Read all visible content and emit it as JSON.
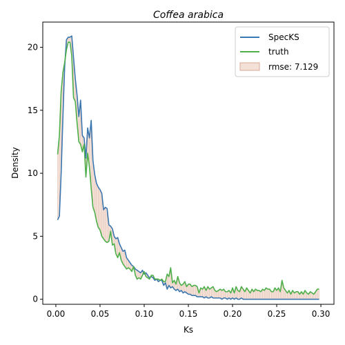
{
  "chart_data": {
    "type": "line",
    "title": "Coffea arabica",
    "xlabel": "Ks",
    "ylabel": "Density",
    "xlim": [
      -0.0148,
      0.3148
    ],
    "ylim": [
      -0.4,
      22.0
    ],
    "xticks": [
      0.0,
      0.05,
      0.1,
      0.15,
      0.2,
      0.25,
      0.3
    ],
    "xtick_labels": [
      "0.00",
      "0.05",
      "0.10",
      "0.15",
      "0.20",
      "0.25",
      "0.30"
    ],
    "yticks": [
      0,
      5,
      10,
      15,
      20
    ],
    "ytick_labels": [
      "0",
      "5",
      "10",
      "15",
      "20"
    ],
    "grid": false,
    "legend_position": "upper right",
    "x": [
      0.002,
      0.004,
      0.006,
      0.008,
      0.01,
      0.012,
      0.014,
      0.016,
      0.018,
      0.02,
      0.022,
      0.024,
      0.026,
      0.028,
      0.03,
      0.032,
      0.034,
      0.036,
      0.038,
      0.04,
      0.042,
      0.044,
      0.046,
      0.048,
      0.05,
      0.052,
      0.054,
      0.056,
      0.058,
      0.06,
      0.062,
      0.064,
      0.066,
      0.068,
      0.07,
      0.072,
      0.074,
      0.076,
      0.078,
      0.08,
      0.082,
      0.084,
      0.086,
      0.088,
      0.09,
      0.092,
      0.094,
      0.096,
      0.098,
      0.1,
      0.102,
      0.104,
      0.106,
      0.108,
      0.11,
      0.112,
      0.114,
      0.116,
      0.118,
      0.12,
      0.122,
      0.124,
      0.126,
      0.128,
      0.13,
      0.132,
      0.134,
      0.136,
      0.138,
      0.14,
      0.142,
      0.144,
      0.146,
      0.148,
      0.15,
      0.152,
      0.154,
      0.156,
      0.158,
      0.16,
      0.162,
      0.164,
      0.166,
      0.168,
      0.17,
      0.172,
      0.174,
      0.176,
      0.178,
      0.18,
      0.182,
      0.184,
      0.186,
      0.188,
      0.19,
      0.192,
      0.194,
      0.196,
      0.198,
      0.2,
      0.202,
      0.204,
      0.206,
      0.208,
      0.21,
      0.212,
      0.214,
      0.216,
      0.218,
      0.22,
      0.222,
      0.224,
      0.226,
      0.228,
      0.23,
      0.232,
      0.234,
      0.236,
      0.238,
      0.24,
      0.242,
      0.244,
      0.246,
      0.248,
      0.25,
      0.252,
      0.254,
      0.256,
      0.258,
      0.26,
      0.262,
      0.264,
      0.266,
      0.268,
      0.27,
      0.272,
      0.274,
      0.276,
      0.278,
      0.28,
      0.282,
      0.284,
      0.286,
      0.288,
      0.29,
      0.292,
      0.294,
      0.296,
      0.298
    ],
    "series": [
      {
        "name": "SpecKS",
        "color": "#3a76af",
        "values": [
          6.3,
          6.6,
          10.0,
          14.5,
          18.5,
          20.6,
          20.8,
          20.8,
          20.9,
          19.2,
          17.5,
          16.2,
          14.5,
          15.8,
          13.0,
          12.8,
          11.2,
          13.6,
          12.8,
          14.2,
          11.0,
          9.9,
          9.2,
          8.9,
          8.7,
          8.4,
          7.1,
          7.3,
          7.2,
          5.9,
          5.8,
          5.6,
          5.0,
          4.8,
          4.9,
          4.4,
          4.1,
          3.8,
          3.9,
          3.3,
          3.1,
          2.9,
          2.7,
          2.6,
          2.4,
          2.3,
          2.2,
          2.1,
          2.3,
          2.0,
          2.1,
          1.9,
          1.7,
          1.8,
          1.7,
          1.5,
          1.6,
          1.4,
          1.5,
          1.5,
          1.1,
          1.3,
          0.8,
          1.1,
          0.9,
          1.0,
          0.8,
          0.7,
          0.8,
          0.6,
          0.7,
          0.5,
          0.6,
          0.5,
          0.4,
          0.4,
          0.3,
          0.3,
          0.3,
          0.2,
          0.2,
          0.2,
          0.2,
          0.1,
          0.2,
          0.1,
          0.1,
          0.2,
          0.1,
          0.1,
          0.1,
          0.1,
          0.1,
          0.0,
          0.1,
          0.1,
          0.0,
          0.1,
          0.0,
          0.1,
          0.0,
          0.1,
          0.0,
          0.0,
          0.1,
          0.0,
          0.0,
          0.0,
          0.0,
          0.0,
          0.0,
          0.0,
          0.0,
          0.0,
          0.0,
          0.0,
          0.0,
          0.0,
          0.0,
          0.0,
          0.0,
          0.0,
          0.0,
          0.0,
          0.0,
          0.0,
          0.0,
          0.0,
          0.0,
          0.0,
          0.0,
          0.0,
          0.0,
          0.0,
          0.0,
          0.0,
          0.0,
          0.0,
          0.0,
          0.0,
          0.0,
          0.0,
          0.0,
          0.0,
          0.0,
          0.0,
          0.0,
          0.0,
          0.0
        ]
      },
      {
        "name": "truth",
        "color": "#4daf4a",
        "values": [
          11.5,
          13.0,
          16.5,
          18.0,
          18.8,
          19.8,
          20.4,
          20.4,
          19.3,
          16.0,
          15.7,
          14.0,
          12.5,
          12.3,
          11.7,
          12.3,
          9.7,
          11.6,
          10.5,
          8.8,
          7.3,
          6.9,
          6.2,
          5.7,
          5.5,
          5.0,
          4.8,
          4.6,
          4.5,
          4.6,
          5.4,
          4.3,
          4.4,
          3.6,
          3.3,
          3.7,
          3.1,
          2.8,
          2.6,
          2.4,
          2.5,
          2.4,
          2.2,
          2.6,
          1.9,
          1.6,
          1.7,
          1.6,
          1.9,
          2.2,
          1.8,
          1.7,
          1.6,
          1.9,
          1.9,
          1.6,
          1.6,
          1.6,
          1.5,
          1.6,
          1.4,
          1.4,
          2.0,
          1.8,
          2.5,
          1.3,
          1.5,
          1.2,
          1.8,
          1.3,
          1.1,
          1.2,
          1.4,
          1.0,
          1.2,
          1.2,
          1.0,
          1.1,
          1.1,
          1.0,
          0.5,
          0.9,
          0.8,
          1.0,
          0.7,
          1.0,
          0.8,
          0.9,
          1.0,
          0.7,
          0.6,
          0.7,
          0.8,
          0.7,
          0.8,
          0.6,
          0.6,
          0.7,
          0.5,
          0.9,
          0.5,
          1.0,
          0.7,
          0.6,
          1.0,
          0.8,
          0.6,
          0.9,
          0.7,
          0.5,
          0.8,
          0.6,
          0.8,
          0.7,
          0.7,
          0.6,
          0.8,
          0.7,
          0.9,
          0.8,
          0.8,
          0.6,
          0.6,
          0.9,
          0.7,
          0.9,
          0.6,
          1.5,
          0.9,
          0.7,
          0.5,
          0.7,
          0.4,
          0.7,
          0.5,
          0.6,
          0.6,
          0.4,
          0.6,
          0.4,
          0.7,
          0.5,
          0.4,
          0.6,
          0.5,
          0.4,
          0.6,
          0.8,
          0.8
        ]
      }
    ],
    "fill": {
      "label": "rmse: 7.129",
      "color": "#e8c4b0",
      "between": [
        "SpecKS",
        "truth"
      ]
    }
  }
}
